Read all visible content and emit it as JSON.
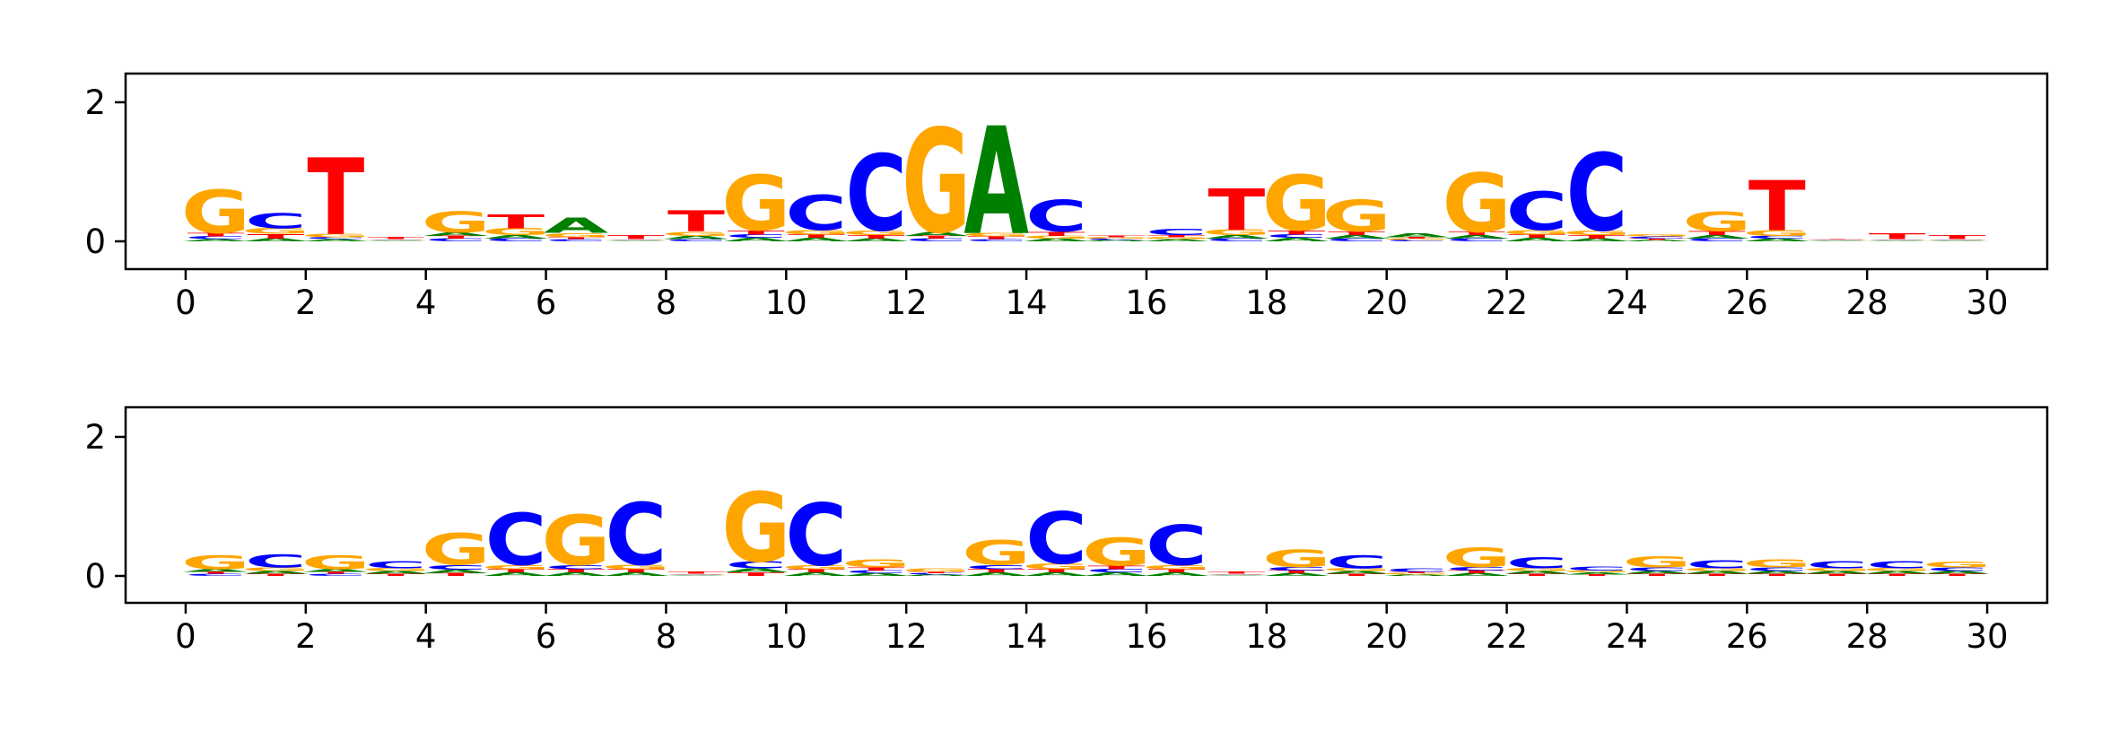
{
  "chart_data": [
    {
      "type": "sequence-logo",
      "ylim": [
        0,
        2.4
      ],
      "yticks": [
        "0",
        "2"
      ],
      "xlim": [
        -1,
        31
      ],
      "xticks": [
        "0",
        "2",
        "4",
        "6",
        "8",
        "10",
        "12",
        "14",
        "16",
        "18",
        "20",
        "22",
        "24",
        "26",
        "28",
        "30"
      ],
      "alphabet": [
        "A",
        "C",
        "G",
        "T"
      ],
      "positions": [
        {
          "pos": 0,
          "A": 0.03,
          "C": 0.04,
          "G": 0.62,
          "T": 0.05
        },
        {
          "pos": 1,
          "A": 0.04,
          "C": 0.22,
          "G": 0.08,
          "T": 0.07
        },
        {
          "pos": 2,
          "A": 0.03,
          "C": 0.03,
          "G": 0.05,
          "T": 1.1
        },
        {
          "pos": 3,
          "A": 0.01,
          "C": 0.01,
          "G": 0.01,
          "T": 0.03
        },
        {
          "pos": 4,
          "A": 0.05,
          "C": 0.04,
          "G": 0.3,
          "T": 0.04
        },
        {
          "pos": 5,
          "A": 0.05,
          "C": 0.04,
          "G": 0.1,
          "T": 0.2
        },
        {
          "pos": 6,
          "A": 0.22,
          "C": 0.03,
          "G": 0.06,
          "T": 0.03
        },
        {
          "pos": 7,
          "A": 0.01,
          "C": 0.01,
          "G": 0.01,
          "T": 0.06
        },
        {
          "pos": 8,
          "A": 0.05,
          "C": 0.03,
          "G": 0.06,
          "T": 0.3
        },
        {
          "pos": 9,
          "A": 0.05,
          "C": 0.05,
          "G": 0.8,
          "T": 0.06
        },
        {
          "pos": 10,
          "A": 0.05,
          "C": 0.5,
          "G": 0.07,
          "T": 0.05
        },
        {
          "pos": 11,
          "A": 0.04,
          "C": 1.1,
          "G": 0.07,
          "T": 0.05
        },
        {
          "pos": 12,
          "A": 0.06,
          "C": 0.04,
          "G": 1.5,
          "T": 0.04
        },
        {
          "pos": 13,
          "A": 1.55,
          "C": 0.03,
          "G": 0.05,
          "T": 0.04
        },
        {
          "pos": 14,
          "A": 0.04,
          "C": 0.45,
          "G": 0.04,
          "T": 0.06
        },
        {
          "pos": 15,
          "A": 0.02,
          "C": 0.02,
          "G": 0.02,
          "T": 0.02
        },
        {
          "pos": 16,
          "A": 0.03,
          "C": 0.09,
          "G": 0.03,
          "T": 0.03
        },
        {
          "pos": 17,
          "A": 0.05,
          "C": 0.04,
          "G": 0.08,
          "T": 0.6
        },
        {
          "pos": 18,
          "A": 0.05,
          "C": 0.05,
          "G": 0.8,
          "T": 0.06
        },
        {
          "pos": 19,
          "A": 0.05,
          "C": 0.04,
          "G": 0.45,
          "T": 0.05
        },
        {
          "pos": 20,
          "A": 0.06,
          "C": 0.02,
          "G": 0.02,
          "T": 0.02
        },
        {
          "pos": 21,
          "A": 0.05,
          "C": 0.04,
          "G": 0.85,
          "T": 0.05
        },
        {
          "pos": 22,
          "A": 0.05,
          "C": 0.55,
          "G": 0.07,
          "T": 0.05
        },
        {
          "pos": 23,
          "A": 0.04,
          "C": 1.12,
          "G": 0.07,
          "T": 0.05
        },
        {
          "pos": 24,
          "A": 0.02,
          "C": 0.03,
          "G": 0.03,
          "T": 0.02
        },
        {
          "pos": 25,
          "A": 0.05,
          "C": 0.04,
          "G": 0.28,
          "T": 0.06
        },
        {
          "pos": 26,
          "A": 0.04,
          "C": 0.04,
          "G": 0.08,
          "T": 0.72
        },
        {
          "pos": 27,
          "A": 0.01,
          "C": 0.01,
          "G": 0.01,
          "T": 0.01
        },
        {
          "pos": 28,
          "A": 0.01,
          "C": 0.01,
          "G": 0.01,
          "T": 0.08
        },
        {
          "pos": 29,
          "A": 0.01,
          "C": 0.01,
          "G": 0.01,
          "T": 0.06
        }
      ]
    },
    {
      "type": "sequence-logo",
      "ylim": [
        0,
        2.4
      ],
      "yticks": [
        "0",
        "2"
      ],
      "xlim": [
        -1,
        31
      ],
      "xticks": [
        "0",
        "2",
        "4",
        "6",
        "8",
        "10",
        "12",
        "14",
        "16",
        "18",
        "20",
        "22",
        "24",
        "26",
        "28",
        "30"
      ],
      "alphabet": [
        "A",
        "C",
        "G",
        "T"
      ],
      "positions": [
        {
          "pos": 0,
          "A": 0.04,
          "C": 0.03,
          "G": 0.2,
          "T": 0.03
        },
        {
          "pos": 1,
          "A": 0.04,
          "C": 0.18,
          "G": 0.05,
          "T": 0.03
        },
        {
          "pos": 2,
          "A": 0.04,
          "C": 0.03,
          "G": 0.2,
          "T": 0.03
        },
        {
          "pos": 3,
          "A": 0.04,
          "C": 0.1,
          "G": 0.04,
          "T": 0.03
        },
        {
          "pos": 4,
          "A": 0.05,
          "C": 0.07,
          "G": 0.45,
          "T": 0.04
        },
        {
          "pos": 5,
          "A": 0.05,
          "C": 0.75,
          "G": 0.06,
          "T": 0.05
        },
        {
          "pos": 6,
          "A": 0.05,
          "C": 0.06,
          "G": 0.72,
          "T": 0.05
        },
        {
          "pos": 7,
          "A": 0.05,
          "C": 0.9,
          "G": 0.07,
          "T": 0.05
        },
        {
          "pos": 8,
          "A": 0.01,
          "C": 0.01,
          "G": 0.01,
          "T": 0.03
        },
        {
          "pos": 9,
          "A": 0.06,
          "C": 0.1,
          "G": 1.0,
          "T": 0.05
        },
        {
          "pos": 10,
          "A": 0.05,
          "C": 0.9,
          "G": 0.06,
          "T": 0.05
        },
        {
          "pos": 11,
          "A": 0.04,
          "C": 0.04,
          "G": 0.12,
          "T": 0.04
        },
        {
          "pos": 12,
          "A": 0.02,
          "C": 0.02,
          "G": 0.05,
          "T": 0.02
        },
        {
          "pos": 13,
          "A": 0.05,
          "C": 0.06,
          "G": 0.35,
          "T": 0.05
        },
        {
          "pos": 14,
          "A": 0.05,
          "C": 0.75,
          "G": 0.08,
          "T": 0.05
        },
        {
          "pos": 15,
          "A": 0.05,
          "C": 0.05,
          "G": 0.4,
          "T": 0.05
        },
        {
          "pos": 16,
          "A": 0.05,
          "C": 0.58,
          "G": 0.06,
          "T": 0.05
        },
        {
          "pos": 17,
          "A": 0.01,
          "C": 0.01,
          "G": 0.01,
          "T": 0.03
        },
        {
          "pos": 18,
          "A": 0.04,
          "C": 0.05,
          "G": 0.25,
          "T": 0.04
        },
        {
          "pos": 19,
          "A": 0.04,
          "C": 0.18,
          "G": 0.04,
          "T": 0.03
        },
        {
          "pos": 20,
          "A": 0.02,
          "C": 0.05,
          "G": 0.02,
          "T": 0.02
        },
        {
          "pos": 21,
          "A": 0.04,
          "C": 0.05,
          "G": 0.28,
          "T": 0.04
        },
        {
          "pos": 22,
          "A": 0.04,
          "C": 0.16,
          "G": 0.04,
          "T": 0.03
        },
        {
          "pos": 23,
          "A": 0.03,
          "C": 0.06,
          "G": 0.03,
          "T": 0.02
        },
        {
          "pos": 24,
          "A": 0.04,
          "C": 0.05,
          "G": 0.16,
          "T": 0.03
        },
        {
          "pos": 25,
          "A": 0.04,
          "C": 0.12,
          "G": 0.04,
          "T": 0.03
        },
        {
          "pos": 26,
          "A": 0.04,
          "C": 0.05,
          "G": 0.12,
          "T": 0.03
        },
        {
          "pos": 27,
          "A": 0.04,
          "C": 0.1,
          "G": 0.04,
          "T": 0.03
        },
        {
          "pos": 28,
          "A": 0.04,
          "C": 0.1,
          "G": 0.04,
          "T": 0.03
        },
        {
          "pos": 29,
          "A": 0.04,
          "C": 0.05,
          "G": 0.08,
          "T": 0.03
        }
      ]
    }
  ],
  "colors": {
    "A": "#008000",
    "C": "#0000ff",
    "G": "#ffa500",
    "T": "#ff0000"
  }
}
